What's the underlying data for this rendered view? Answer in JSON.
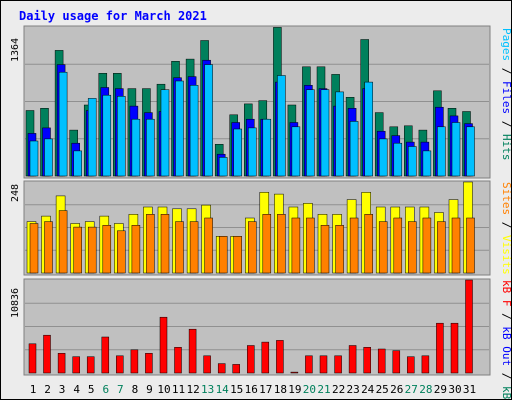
{
  "title": "Daily usage for March 2021",
  "colors": {
    "frame_bg": "#ececec",
    "title": "#0000ff",
    "panel_bg": "#c0c0c0",
    "hits": "#00805c",
    "files": "#0000ff",
    "pages": "#00c0ff",
    "visits": "#ffff00",
    "sites": "#ff8000",
    "kbin": "#00805c",
    "kbout": "#0000ff",
    "kbf": "#ff0000",
    "weekday_label": "#000000",
    "weekend_label": "#00805c",
    "max_label": "#000000"
  },
  "chart_data": [
    {
      "type": "bar",
      "name": "usage",
      "ylim": [
        0,
        1364
      ],
      "max_label": "1364",
      "legend": [
        {
          "key": "pages",
          "text": "Pages"
        },
        {
          "key": "sep",
          "text": " / "
        },
        {
          "key": "files",
          "text": "Files"
        },
        {
          "key": "sep",
          "text": " / "
        },
        {
          "key": "hits",
          "text": "Hits"
        }
      ],
      "series": [
        {
          "name": "Hits",
          "key": "hits",
          "values": [
            600,
            620,
            1150,
            420,
            650,
            940,
            940,
            800,
            800,
            840,
            1050,
            1070,
            1240,
            290,
            560,
            660,
            690,
            1360,
            650,
            1000,
            1000,
            930,
            720,
            1250,
            580,
            450,
            460,
            420,
            780,
            620,
            590
          ]
        },
        {
          "name": "Files",
          "key": "files",
          "values": [
            390,
            440,
            1020,
            300,
            600,
            810,
            800,
            640,
            580,
            590,
            900,
            910,
            1060,
            200,
            490,
            520,
            520,
            860,
            490,
            830,
            800,
            640,
            620,
            800,
            410,
            370,
            310,
            310,
            630,
            550,
            480
          ]
        },
        {
          "name": "Pages",
          "key": "pages",
          "values": [
            320,
            340,
            950,
            230,
            710,
            740,
            730,
            520,
            520,
            790,
            870,
            830,
            1020,
            170,
            430,
            440,
            520,
            920,
            450,
            790,
            790,
            770,
            500,
            860,
            340,
            300,
            270,
            230,
            450,
            490,
            450
          ]
        }
      ]
    },
    {
      "type": "bar",
      "name": "visits",
      "ylim": [
        0,
        248
      ],
      "max_label": "248",
      "legend": [
        {
          "key": "sites",
          "text": "Sites"
        },
        {
          "key": "sep",
          "text": " / "
        },
        {
          "key": "visits",
          "text": "Visits"
        }
      ],
      "series": [
        {
          "name": "Visits",
          "key": "visits",
          "values": [
            140,
            155,
            210,
            135,
            140,
            155,
            135,
            160,
            180,
            180,
            175,
            175,
            185,
            100,
            100,
            150,
            220,
            215,
            180,
            190,
            160,
            160,
            200,
            220,
            180,
            180,
            180,
            180,
            165,
            200,
            250
          ]
        },
        {
          "name": "Sites",
          "key": "sites",
          "values": [
            135,
            140,
            170,
            125,
            125,
            130,
            115,
            130,
            160,
            160,
            140,
            140,
            150,
            100,
            100,
            140,
            160,
            160,
            150,
            150,
            130,
            130,
            150,
            160,
            140,
            150,
            140,
            150,
            140,
            150,
            150
          ]
        }
      ]
    },
    {
      "type": "bar",
      "name": "kbytes",
      "ylim": [
        0,
        10836
      ],
      "max_label": "10836",
      "legend": [
        {
          "key": "kbf",
          "text": "kB F"
        },
        {
          "key": "sep",
          "text": " / "
        },
        {
          "key": "kbout",
          "text": "kB Out"
        },
        {
          "key": "sep",
          "text": " / "
        },
        {
          "key": "kbin",
          "text": "kB In"
        }
      ],
      "series": [
        {
          "name": "kB F",
          "key": "kbf",
          "values": [
            3400,
            4400,
            2300,
            1900,
            1900,
            4200,
            2000,
            2700,
            2300,
            6500,
            3000,
            5100,
            2000,
            1100,
            1000,
            3200,
            3600,
            3800,
            100,
            2000,
            2000,
            2000,
            3200,
            3000,
            2800,
            2600,
            1900,
            2000,
            5800,
            5800,
            10836
          ]
        }
      ]
    }
  ],
  "x_axis": {
    "categories": [
      "1",
      "2",
      "3",
      "4",
      "5",
      "6",
      "7",
      "8",
      "9",
      "10",
      "11",
      "12",
      "13",
      "14",
      "15",
      "16",
      "17",
      "18",
      "19",
      "20",
      "21",
      "22",
      "23",
      "24",
      "25",
      "26",
      "27",
      "28",
      "29",
      "30",
      "31"
    ],
    "weekend": [
      false,
      false,
      false,
      false,
      false,
      true,
      true,
      false,
      false,
      false,
      false,
      false,
      true,
      true,
      false,
      false,
      false,
      false,
      false,
      true,
      true,
      false,
      false,
      false,
      false,
      false,
      true,
      true,
      false,
      false,
      false
    ]
  }
}
